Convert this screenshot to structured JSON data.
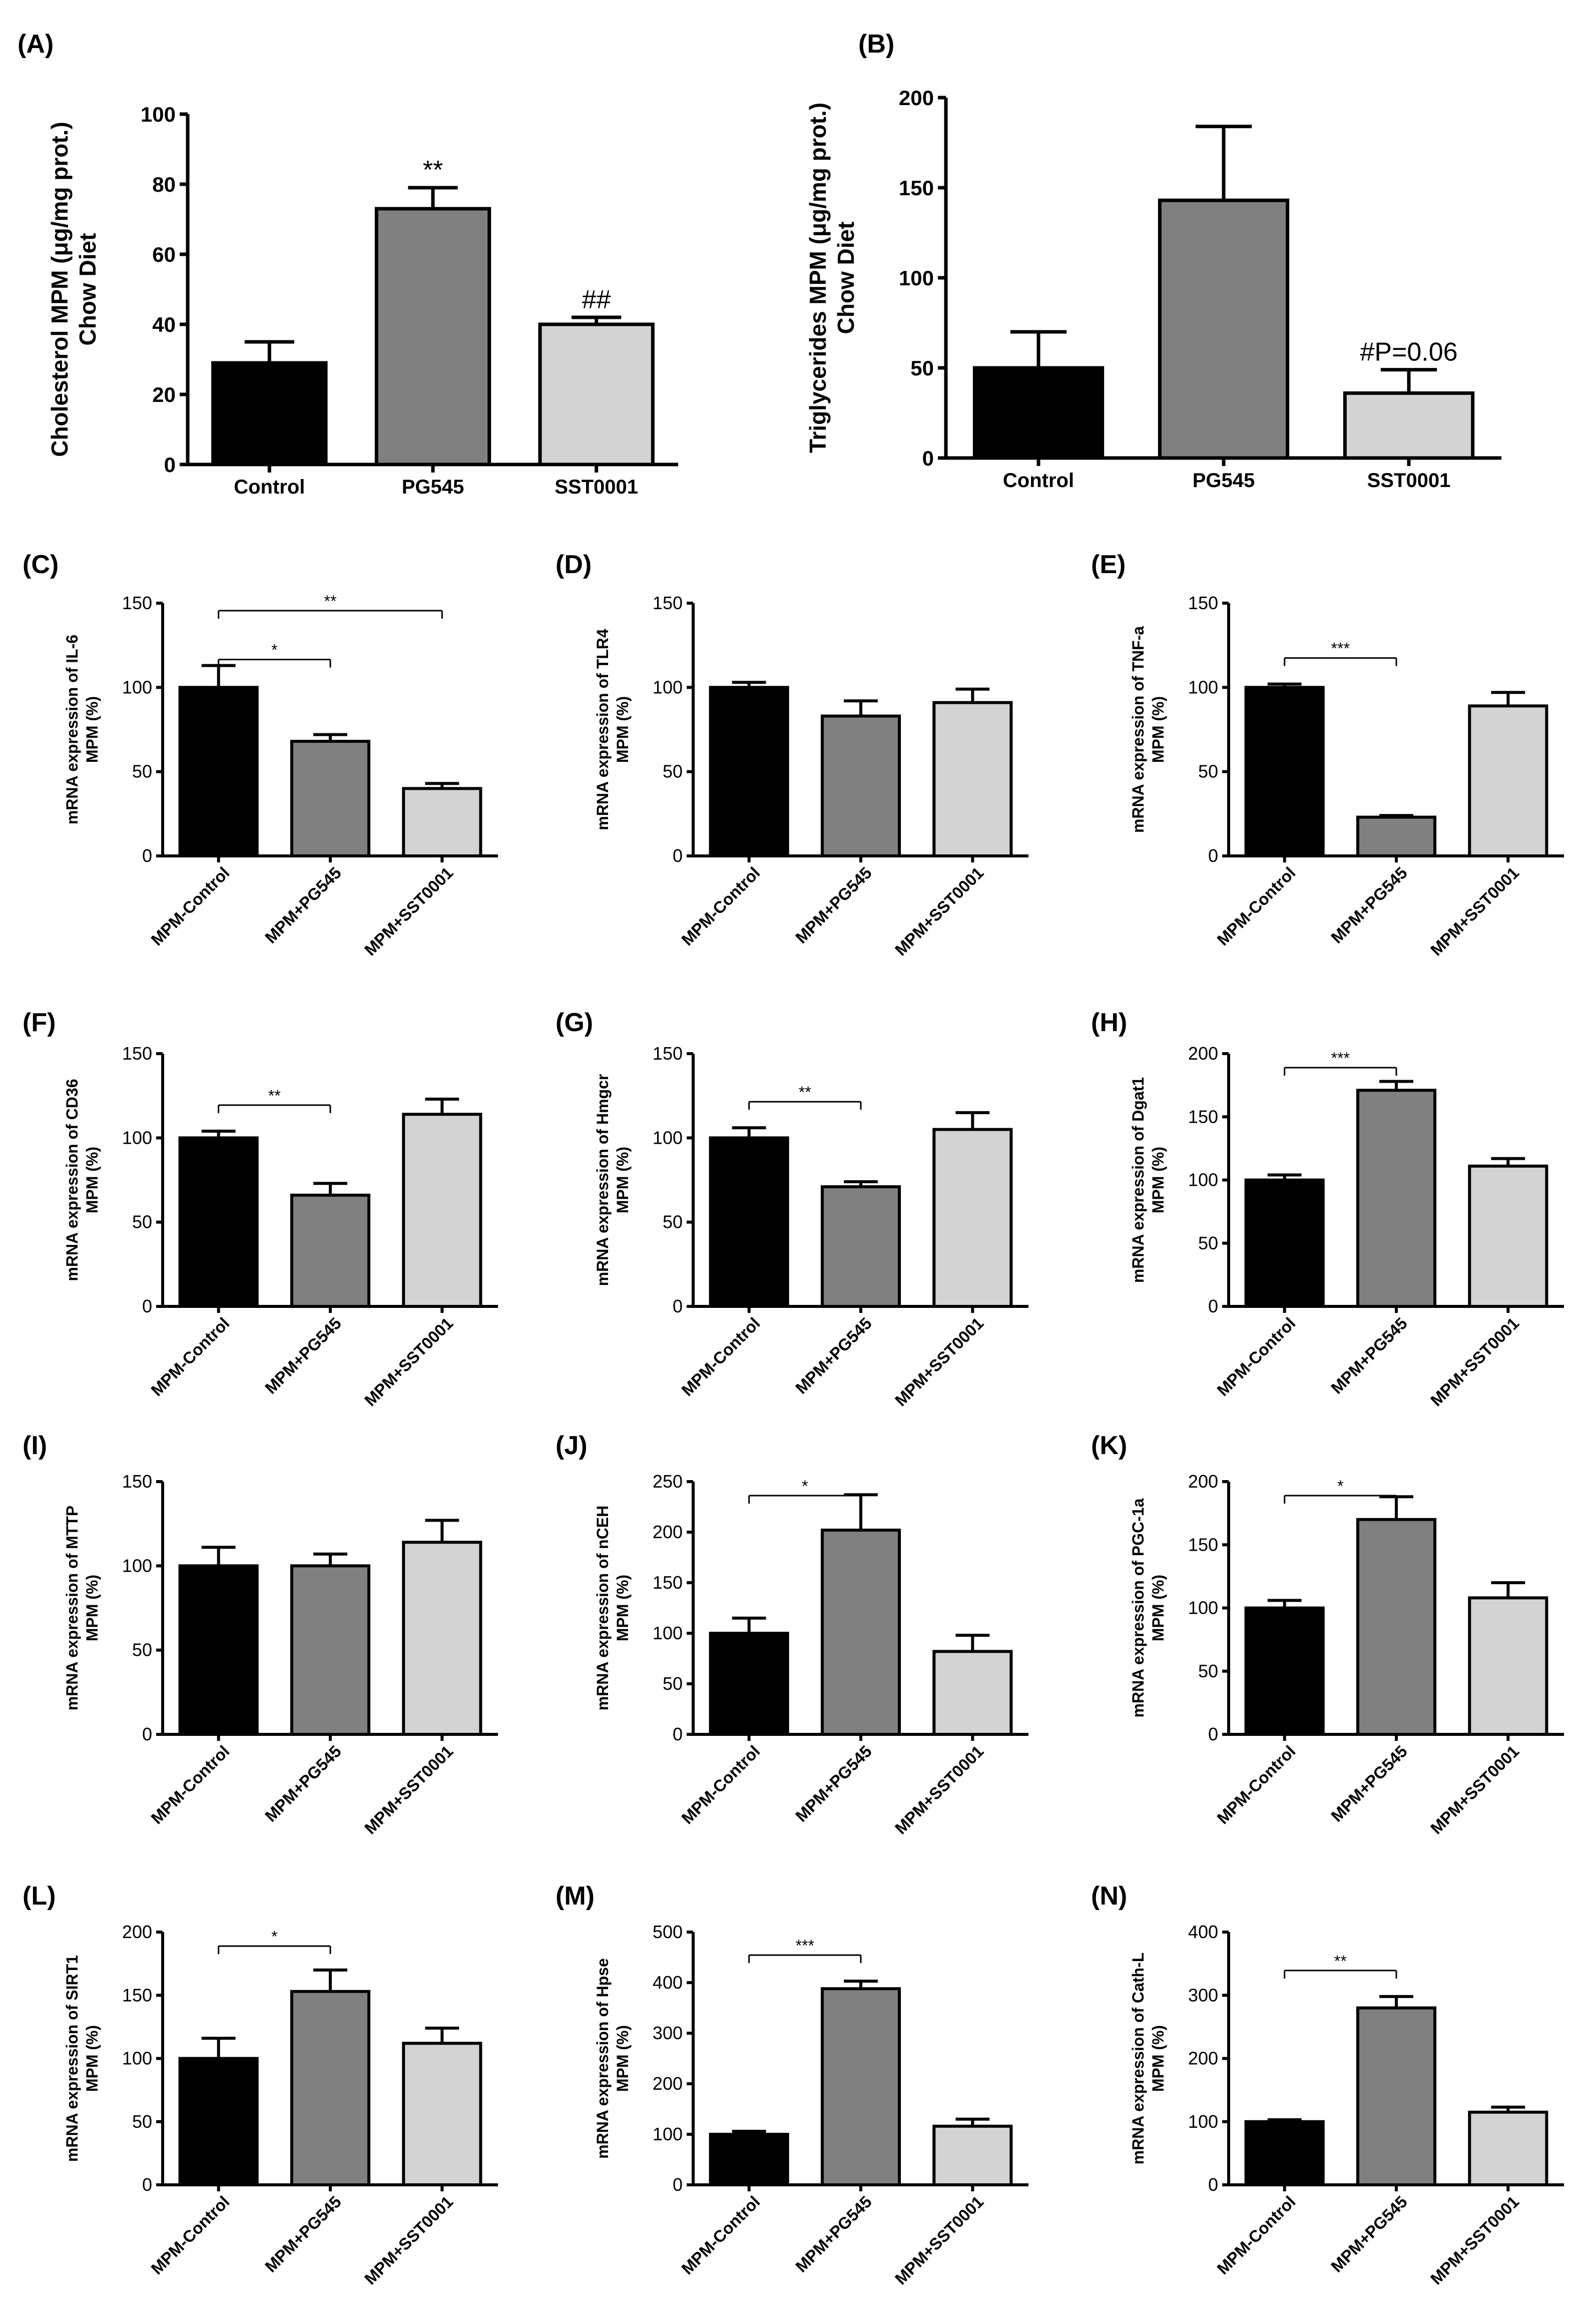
{
  "chart_data": [
    {
      "id": "A",
      "panel_label": "(A)",
      "type": "bar",
      "ylabel_lines": [
        "Cholesterol MPM (μg/mg prot.)",
        "Chow Diet"
      ],
      "categories": [
        "Control",
        "PG545",
        "SST0001"
      ],
      "values": [
        29,
        73,
        40
      ],
      "errors": [
        6,
        6,
        2
      ],
      "ylim": [
        0,
        100
      ],
      "yticks": [
        0,
        20,
        40,
        60,
        80,
        100
      ],
      "colors": [
        "#000000",
        "#808080",
        "#d3d3d3"
      ],
      "annotations": [
        {
          "category": 1,
          "text": "**"
        },
        {
          "category": 2,
          "text": "##"
        }
      ],
      "brackets": []
    },
    {
      "id": "B",
      "panel_label": "(B)",
      "type": "bar",
      "ylabel_lines": [
        "Triglycerides MPM (μg/mg prot.)",
        "Chow Diet"
      ],
      "categories": [
        "Control",
        "PG545",
        "SST0001"
      ],
      "values": [
        50,
        143,
        36
      ],
      "errors": [
        20,
        41,
        13
      ],
      "ylim": [
        0,
        200
      ],
      "yticks": [
        0,
        50,
        100,
        150,
        200
      ],
      "colors": [
        "#000000",
        "#808080",
        "#d3d3d3"
      ],
      "annotations": [
        {
          "category": 2,
          "text": "#P=0.06"
        }
      ],
      "brackets": []
    },
    {
      "id": "C",
      "panel_label": "(C)",
      "type": "bar",
      "ylabel_lines": [
        "mRNA expression of IL-6",
        "MPM (%)"
      ],
      "categories": [
        "MPM-Control",
        "MPM+PG545",
        "MPM+SST0001"
      ],
      "values": [
        100,
        68,
        40
      ],
      "errors": [
        13,
        4,
        3
      ],
      "ylim": [
        0,
        150
      ],
      "yticks": [
        0,
        50,
        100,
        150
      ],
      "colors": [
        "#000000",
        "#808080",
        "#d3d3d3"
      ],
      "annotations": [],
      "brackets": [
        {
          "from": 0,
          "to": 1,
          "level": 0,
          "text": "*"
        },
        {
          "from": 0,
          "to": 2,
          "level": 1,
          "text": "**"
        }
      ]
    },
    {
      "id": "D",
      "panel_label": "(D)",
      "type": "bar",
      "ylabel_lines": [
        "mRNA expression of TLR4",
        "MPM (%)"
      ],
      "categories": [
        "MPM-Control",
        "MPM+PG545",
        "MPM+SST0001"
      ],
      "values": [
        100,
        83,
        91
      ],
      "errors": [
        3,
        9,
        8
      ],
      "ylim": [
        0,
        150
      ],
      "yticks": [
        0,
        50,
        100,
        150
      ],
      "colors": [
        "#000000",
        "#808080",
        "#d3d3d3"
      ],
      "annotations": [],
      "brackets": []
    },
    {
      "id": "E",
      "panel_label": "(E)",
      "type": "bar",
      "ylabel_lines": [
        "mRNA expression of TNF-a",
        "MPM (%)"
      ],
      "categories": [
        "MPM-Control",
        "MPM+PG545",
        "MPM+SST0001"
      ],
      "values": [
        100,
        23,
        89
      ],
      "errors": [
        2,
        1,
        8
      ],
      "ylim": [
        0,
        150
      ],
      "yticks": [
        0,
        50,
        100,
        150
      ],
      "colors": [
        "#000000",
        "#808080",
        "#d3d3d3"
      ],
      "annotations": [],
      "brackets": [
        {
          "from": 0,
          "to": 1,
          "level": 0,
          "text": "***"
        }
      ]
    },
    {
      "id": "F",
      "panel_label": "(F)",
      "type": "bar",
      "ylabel_lines": [
        "mRNA expression of CD36",
        "MPM (%)"
      ],
      "categories": [
        "MPM-Control",
        "MPM+PG545",
        "MPM+SST0001"
      ],
      "values": [
        100,
        66,
        114
      ],
      "errors": [
        4,
        7,
        9
      ],
      "ylim": [
        0,
        150
      ],
      "yticks": [
        0,
        50,
        100,
        150
      ],
      "colors": [
        "#000000",
        "#808080",
        "#d3d3d3"
      ],
      "annotations": [],
      "brackets": [
        {
          "from": 0,
          "to": 1,
          "level": 0,
          "text": "**"
        }
      ]
    },
    {
      "id": "G",
      "panel_label": "(G)",
      "type": "bar",
      "ylabel_lines": [
        "mRNA expression of Hmgcr",
        "MPM (%)"
      ],
      "categories": [
        "MPM-Control",
        "MPM+PG545",
        "MPM+SST0001"
      ],
      "values": [
        100,
        71,
        105
      ],
      "errors": [
        6,
        3,
        10
      ],
      "ylim": [
        0,
        150
      ],
      "yticks": [
        0,
        50,
        100,
        150
      ],
      "colors": [
        "#000000",
        "#808080",
        "#d3d3d3"
      ],
      "annotations": [],
      "brackets": [
        {
          "from": 0,
          "to": 1,
          "level": 0,
          "text": "**"
        }
      ]
    },
    {
      "id": "H",
      "panel_label": "(H)",
      "type": "bar",
      "ylabel_lines": [
        "mRNA expression of Dgat1",
        "MPM (%)"
      ],
      "categories": [
        "MPM-Control",
        "MPM+PG545",
        "MPM+SST0001"
      ],
      "values": [
        100,
        171,
        111
      ],
      "errors": [
        4,
        7,
        6
      ],
      "ylim": [
        0,
        200
      ],
      "yticks": [
        0,
        50,
        100,
        150,
        200
      ],
      "colors": [
        "#000000",
        "#808080",
        "#d3d3d3"
      ],
      "annotations": [],
      "brackets": [
        {
          "from": 0,
          "to": 1,
          "level": 0,
          "text": "***"
        }
      ]
    },
    {
      "id": "I",
      "panel_label": "(I)",
      "type": "bar",
      "ylabel_lines": [
        "mRNA expression of MTTP",
        "MPM (%)"
      ],
      "categories": [
        "MPM-Control",
        "MPM+PG545",
        "MPM+SST0001"
      ],
      "values": [
        100,
        100,
        114
      ],
      "errors": [
        11,
        7,
        13
      ],
      "ylim": [
        0,
        150
      ],
      "yticks": [
        0,
        50,
        100,
        150
      ],
      "colors": [
        "#000000",
        "#808080",
        "#d3d3d3"
      ],
      "annotations": [],
      "brackets": []
    },
    {
      "id": "J",
      "panel_label": "(J)",
      "type": "bar",
      "ylabel_lines": [
        "mRNA expression of nCEH",
        "MPM (%)"
      ],
      "categories": [
        "MPM-Control",
        "MPM+PG545",
        "MPM+SST0001"
      ],
      "values": [
        100,
        202,
        82
      ],
      "errors": [
        15,
        35,
        16
      ],
      "ylim": [
        0,
        250
      ],
      "yticks": [
        0,
        50,
        100,
        150,
        200,
        250
      ],
      "colors": [
        "#000000",
        "#808080",
        "#d3d3d3"
      ],
      "annotations": [],
      "brackets": [
        {
          "from": 0,
          "to": 1,
          "level": 0,
          "text": "*"
        }
      ]
    },
    {
      "id": "K",
      "panel_label": "(K)",
      "type": "bar",
      "ylabel_lines": [
        "mRNA expression of PGC-1a",
        "MPM (%)"
      ],
      "categories": [
        "MPM-Control",
        "MPM+PG545",
        "MPM+SST0001"
      ],
      "values": [
        100,
        170,
        108
      ],
      "errors": [
        6,
        18,
        12
      ],
      "ylim": [
        0,
        200
      ],
      "yticks": [
        0,
        50,
        100,
        150,
        200
      ],
      "colors": [
        "#000000",
        "#808080",
        "#d3d3d3"
      ],
      "annotations": [],
      "brackets": [
        {
          "from": 0,
          "to": 1,
          "level": 0,
          "text": "*"
        }
      ]
    },
    {
      "id": "L",
      "panel_label": "(L)",
      "type": "bar",
      "ylabel_lines": [
        "mRNA expression of SIRT1",
        "MPM (%)"
      ],
      "categories": [
        "MPM-Control",
        "MPM+PG545",
        "MPM+SST0001"
      ],
      "values": [
        100,
        153,
        112
      ],
      "errors": [
        16,
        17,
        12
      ],
      "ylim": [
        0,
        200
      ],
      "yticks": [
        0,
        50,
        100,
        150,
        200
      ],
      "colors": [
        "#000000",
        "#808080",
        "#d3d3d3"
      ],
      "annotations": [],
      "brackets": [
        {
          "from": 0,
          "to": 1,
          "level": 0,
          "text": "*"
        }
      ]
    },
    {
      "id": "M",
      "panel_label": "(M)",
      "type": "bar",
      "ylabel_lines": [
        "mRNA expression of Hpse",
        "MPM (%)"
      ],
      "categories": [
        "MPM-Control",
        "MPM+PG545",
        "MPM+SST0001"
      ],
      "values": [
        100,
        388,
        116
      ],
      "errors": [
        6,
        15,
        14
      ],
      "ylim": [
        0,
        500
      ],
      "yticks": [
        0,
        100,
        200,
        300,
        400,
        500
      ],
      "colors": [
        "#000000",
        "#808080",
        "#d3d3d3"
      ],
      "annotations": [],
      "brackets": [
        {
          "from": 0,
          "to": 1,
          "level": 0,
          "text": "***"
        }
      ]
    },
    {
      "id": "N",
      "panel_label": "(N)",
      "type": "bar",
      "ylabel_lines": [
        "mRNA expression of Cath-L",
        "MPM (%)"
      ],
      "categories": [
        "MPM-Control",
        "MPM+PG545",
        "MPM+SST0001"
      ],
      "values": [
        100,
        280,
        115
      ],
      "errors": [
        3,
        18,
        8
      ],
      "ylim": [
        0,
        400
      ],
      "yticks": [
        0,
        100,
        200,
        300,
        400
      ],
      "colors": [
        "#000000",
        "#808080",
        "#d3d3d3"
      ],
      "annotations": [],
      "brackets": [
        {
          "from": 0,
          "to": 1,
          "level": 0,
          "text": "**"
        }
      ]
    }
  ]
}
